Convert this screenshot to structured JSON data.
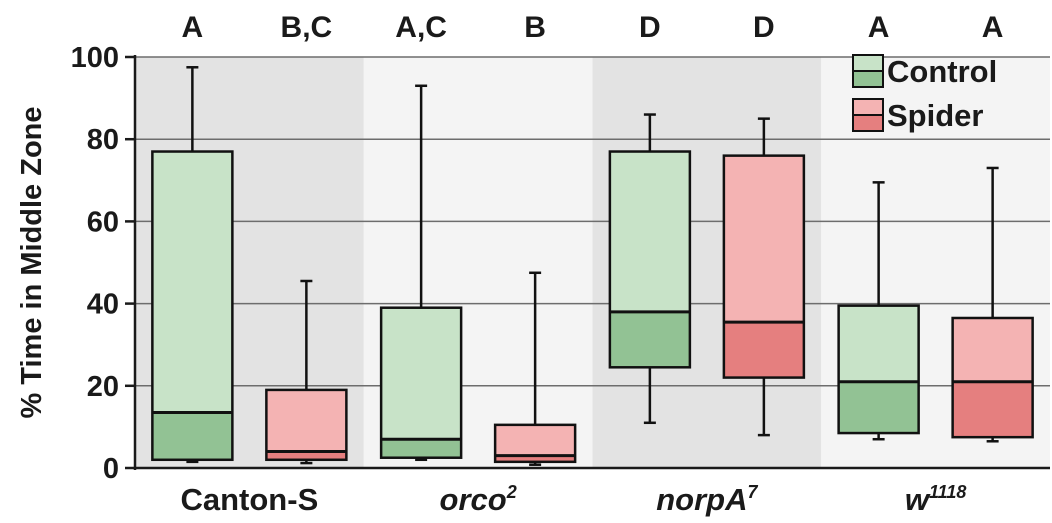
{
  "chart_data": {
    "type": "box",
    "ylabel": "% Time in Middle Zone",
    "ylim": [
      0,
      100
    ],
    "yticks": [
      0,
      20,
      40,
      60,
      80,
      100
    ],
    "grid": true,
    "legend": {
      "placement": "top-right",
      "entries": [
        {
          "label": "Control",
          "light": "#c8e3c8",
          "dark": "#92c294"
        },
        {
          "label": "Spider",
          "light": "#f4b3b3",
          "dark": "#e57f7f"
        }
      ]
    },
    "groups": [
      {
        "name": "Canton-S",
        "italic": false,
        "base": "Canton-S",
        "sup": "",
        "shade": true
      },
      {
        "name": "orco2",
        "italic": true,
        "base": "orco",
        "sup": "2",
        "shade": false
      },
      {
        "name": "norpA7",
        "italic": true,
        "base": "norpA",
        "sup": "7",
        "shade": true
      },
      {
        "name": "w1118",
        "italic": true,
        "base": "w",
        "sup": "1118",
        "shade": false
      }
    ],
    "boxes": [
      {
        "group": 0,
        "series": "Control",
        "letter": "A",
        "whisker_low": 1.5,
        "q1": 2,
        "median": 13.5,
        "q3": 77,
        "whisker_high": 97.5
      },
      {
        "group": 0,
        "series": "Spider",
        "letter": "B,C",
        "whisker_low": 1.2,
        "q1": 2,
        "median": 4,
        "q3": 19,
        "whisker_high": 45.5
      },
      {
        "group": 1,
        "series": "Control",
        "letter": "A,C",
        "whisker_low": 2,
        "q1": 2.5,
        "median": 7,
        "q3": 39,
        "whisker_high": 93
      },
      {
        "group": 1,
        "series": "Spider",
        "letter": "B",
        "whisker_low": 0.8,
        "q1": 1.5,
        "median": 3,
        "q3": 10.5,
        "whisker_high": 47.5
      },
      {
        "group": 2,
        "series": "Control",
        "letter": "D",
        "whisker_low": 11,
        "q1": 24.5,
        "median": 38,
        "q3": 77,
        "whisker_high": 86
      },
      {
        "group": 2,
        "series": "Spider",
        "letter": "D",
        "whisker_low": 8,
        "q1": 22,
        "median": 35.5,
        "q3": 76,
        "whisker_high": 85
      },
      {
        "group": 3,
        "series": "Control",
        "letter": "A",
        "whisker_low": 7,
        "q1": 8.5,
        "median": 21,
        "q3": 39.5,
        "whisker_high": 69.5
      },
      {
        "group": 3,
        "series": "Spider",
        "letter": "A",
        "whisker_low": 6.5,
        "q1": 7.5,
        "median": 21,
        "q3": 36.5,
        "whisker_high": 73
      }
    ]
  }
}
